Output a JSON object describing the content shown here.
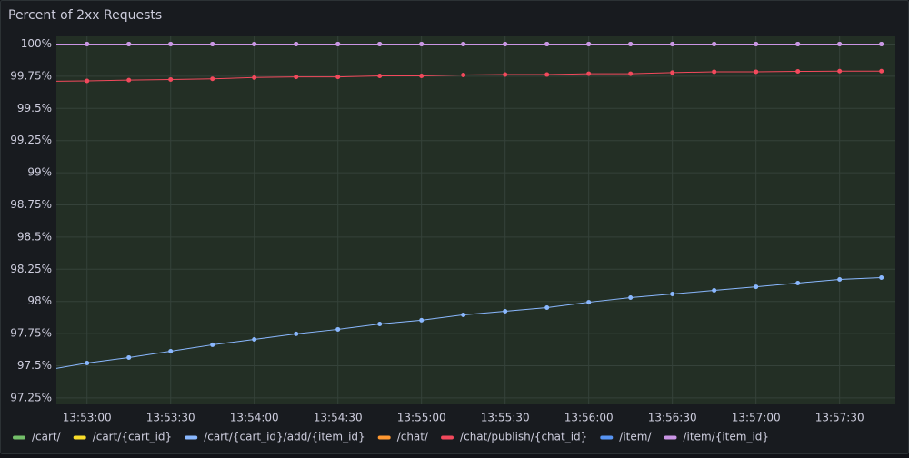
{
  "chart_data": {
    "type": "line",
    "title": "Percent of 2xx Requests",
    "x": [
      "13:52:45",
      "13:53:00",
      "13:53:15",
      "13:53:30",
      "13:53:45",
      "13:54:00",
      "13:54:15",
      "13:54:30",
      "13:54:45",
      "13:55:00",
      "13:55:15",
      "13:55:30",
      "13:55:45",
      "13:56:00",
      "13:56:15",
      "13:56:30",
      "13:56:45",
      "13:57:00",
      "13:57:15",
      "13:57:30",
      "13:57:45"
    ],
    "xlim": [
      "13:52:49",
      "13:57:50"
    ],
    "xticks": [
      "13:53:00",
      "13:53:30",
      "13:54:00",
      "13:54:30",
      "13:55:00",
      "13:55:30",
      "13:56:00",
      "13:56:30",
      "13:57:00",
      "13:57:30"
    ],
    "ylim": [
      97.2,
      100.06
    ],
    "yticks": [
      {
        "value": 97.25,
        "label": "97.25%"
      },
      {
        "value": 97.5,
        "label": "97.5%"
      },
      {
        "value": 97.75,
        "label": "97.75%"
      },
      {
        "value": 98,
        "label": "98%"
      },
      {
        "value": 98.25,
        "label": "98.25%"
      },
      {
        "value": 98.5,
        "label": "98.5%"
      },
      {
        "value": 98.75,
        "label": "98.75%"
      },
      {
        "value": 99,
        "label": "99%"
      },
      {
        "value": 99.25,
        "label": "99.25%"
      },
      {
        "value": 99.5,
        "label": "99.5%"
      },
      {
        "value": 99.75,
        "label": "99.75%"
      },
      {
        "value": 100,
        "label": "100%"
      }
    ],
    "grid": true,
    "series": [
      {
        "name": "/cart/",
        "color": "#73bf69",
        "values": [
          100,
          100,
          100,
          100,
          100,
          100,
          100,
          100,
          100,
          100,
          100,
          100,
          100,
          100,
          100,
          100,
          100,
          100,
          100,
          100,
          100
        ]
      },
      {
        "name": "/cart/{cart_id}",
        "color": "#fade2a",
        "values": [
          100,
          100,
          100,
          100,
          100,
          100,
          100,
          100,
          100,
          100,
          100,
          100,
          100,
          100,
          100,
          100,
          100,
          100,
          100,
          100,
          100
        ]
      },
      {
        "name": "/cart/{cart_id}/add/{item_id}",
        "color": "#8ab8ff",
        "values": [
          97.465,
          97.521,
          97.564,
          97.613,
          97.663,
          97.705,
          97.748,
          97.783,
          97.825,
          97.854,
          97.896,
          97.924,
          97.952,
          97.994,
          98.03,
          98.058,
          98.086,
          98.114,
          98.143,
          98.171,
          98.185
        ]
      },
      {
        "name": "/chat/",
        "color": "#ff9830",
        "values": [
          100,
          100,
          100,
          100,
          100,
          100,
          100,
          100,
          100,
          100,
          100,
          100,
          100,
          100,
          100,
          100,
          100,
          100,
          100,
          100,
          100
        ]
      },
      {
        "name": "/chat/publish/{chat_id}",
        "color": "#f2495c",
        "values": [
          99.71,
          99.714,
          99.72,
          99.725,
          99.73,
          99.74,
          99.745,
          99.745,
          99.753,
          99.753,
          99.76,
          99.763,
          99.763,
          99.77,
          99.77,
          99.778,
          99.785,
          99.785,
          99.788,
          99.79,
          99.79
        ]
      },
      {
        "name": "/item/",
        "color": "#5794f2",
        "values": [
          100,
          100,
          100,
          100,
          100,
          100,
          100,
          100,
          100,
          100,
          100,
          100,
          100,
          100,
          100,
          100,
          100,
          100,
          100,
          100,
          100
        ]
      },
      {
        "name": "/item/{item_id}",
        "color": "#ca95e5",
        "values": [
          100,
          100,
          100,
          100,
          100,
          100,
          100,
          100,
          100,
          100,
          100,
          100,
          100,
          100,
          100,
          100,
          100,
          100,
          100,
          100,
          100
        ]
      }
    ]
  }
}
